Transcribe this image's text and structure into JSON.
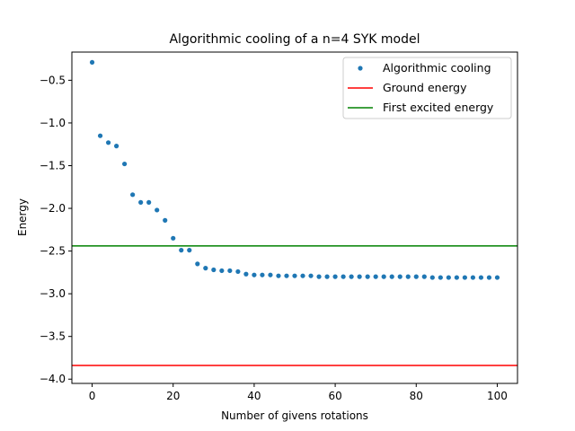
{
  "chart_data": {
    "type": "scatter",
    "title": "Algorithmic cooling of a n=4 SYK model",
    "xlabel": "Number of givens rotations",
    "ylabel": "Energy",
    "xlim": [
      -5,
      105
    ],
    "ylim": [
      -4.05,
      -0.17
    ],
    "xticks": [
      0,
      20,
      40,
      60,
      80,
      100
    ],
    "xtick_labels": [
      "0",
      "20",
      "40",
      "60",
      "80",
      "100"
    ],
    "yticks": [
      -0.5,
      -1.0,
      -1.5,
      -2.0,
      -2.5,
      -3.0,
      -3.5,
      -4.0
    ],
    "ytick_labels": [
      "−0.5",
      "−1.0",
      "−1.5",
      "−2.0",
      "−2.5",
      "−3.0",
      "−3.5",
      "−4.0"
    ],
    "grid": false,
    "legend_position": "top-right",
    "series": [
      {
        "name": "Algorithmic cooling",
        "kind": "points",
        "color": "#1f77b4",
        "x": [
          0,
          2,
          4,
          6,
          8,
          10,
          12,
          14,
          16,
          18,
          20,
          22,
          24,
          26,
          28,
          30,
          32,
          34,
          36,
          38,
          40,
          42,
          44,
          46,
          48,
          50,
          52,
          54,
          56,
          58,
          60,
          62,
          64,
          66,
          68,
          70,
          72,
          74,
          76,
          78,
          80,
          82,
          84,
          86,
          88,
          90,
          92,
          94,
          96,
          98,
          100
        ],
        "y": [
          -0.29,
          -1.15,
          -1.23,
          -1.27,
          -1.48,
          -1.84,
          -1.93,
          -1.93,
          -2.02,
          -2.14,
          -2.35,
          -2.49,
          -2.49,
          -2.65,
          -2.7,
          -2.72,
          -2.73,
          -2.73,
          -2.74,
          -2.77,
          -2.78,
          -2.78,
          -2.78,
          -2.79,
          -2.79,
          -2.79,
          -2.79,
          -2.79,
          -2.8,
          -2.8,
          -2.8,
          -2.8,
          -2.8,
          -2.8,
          -2.8,
          -2.8,
          -2.8,
          -2.8,
          -2.8,
          -2.8,
          -2.8,
          -2.8,
          -2.81,
          -2.81,
          -2.81,
          -2.81,
          -2.81,
          -2.81,
          -2.81,
          -2.81,
          -2.81
        ]
      },
      {
        "name": "Ground energy",
        "kind": "hline",
        "color": "#ff0000",
        "y": -3.84
      },
      {
        "name": "First excited energy",
        "kind": "hline",
        "color": "#008000",
        "y": -2.44
      }
    ]
  }
}
